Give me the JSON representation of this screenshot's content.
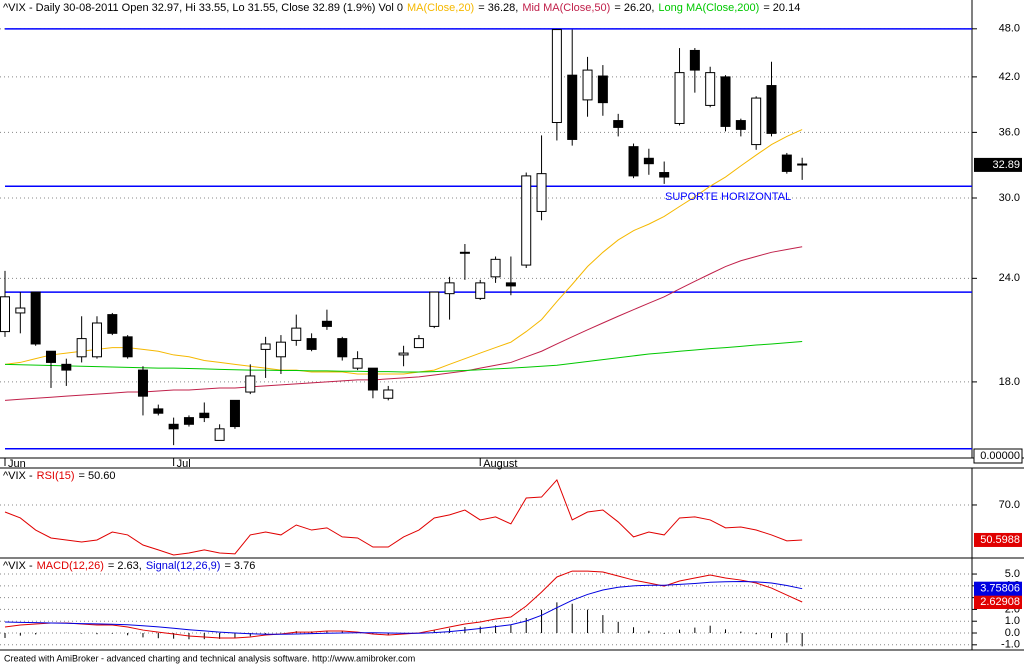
{
  "chart_data": [
    {
      "type": "candlestick",
      "title": "^VIX - Daily 30-08-2011 Open 32.97, Hi 33.55, Lo 31.55, Close 32.89 (1.9%) Vol 0",
      "log_scale": true,
      "ylim": [
        14.57,
        52.0
      ],
      "yticks": [
        {
          "value": 48,
          "label": "48.0"
        },
        {
          "value": 42,
          "label": "42.0"
        },
        {
          "value": 36,
          "label": "36.0"
        },
        {
          "value": 30,
          "label": "30.0"
        },
        {
          "value": 24,
          "label": "24.0"
        },
        {
          "value": 18,
          "label": "18.0"
        }
      ],
      "grid": true,
      "bottom_label": "0.00000",
      "categories": [
        "Jun",
        null,
        null,
        null,
        null,
        null,
        null,
        null,
        null,
        null,
        null,
        "Jul",
        null,
        null,
        null,
        null,
        null,
        null,
        null,
        null,
        null,
        null,
        null,
        null,
        null,
        null,
        null,
        null,
        null,
        null,
        null,
        "August",
        null,
        null,
        null,
        null,
        null,
        null,
        null,
        null,
        null,
        null,
        null,
        null,
        null,
        null,
        null,
        null,
        null,
        null,
        null,
        null,
        null
      ],
      "open": [
        20.7,
        21.8,
        23.1,
        19.6,
        18.9,
        19.3,
        19.3,
        21.7,
        20.4,
        18.6,
        16.7,
        16.0,
        16.3,
        16.5,
        15.3,
        17.1,
        17.5,
        19.7,
        19.3,
        20.2,
        20.3,
        21.3,
        20.3,
        18.7,
        18.7,
        17.2,
        19.4,
        19.8,
        21.0,
        23.0,
        25.8,
        22.7,
        24.1,
        23.7,
        24.9,
        28.9,
        37.0,
        42.2,
        39.4,
        42.1,
        37.2,
        34.6,
        33.5,
        32.2,
        36.9,
        45.2,
        38.8,
        42.0,
        37.2,
        34.8,
        41.0,
        33.8,
        32.97
      ],
      "high": [
        24.5,
        23.1,
        23.1,
        19.6,
        19.2,
        21.6,
        21.6,
        21.8,
        20.5,
        18.8,
        16.9,
        16.3,
        16.4,
        17.0,
        16.0,
        17.1,
        18.9,
        20.4,
        20.5,
        21.7,
        20.6,
        22.0,
        20.4,
        19.6,
        18.7,
        17.8,
        19.9,
        20.5,
        23.1,
        24.1,
        26.4,
        23.9,
        25.5,
        25.5,
        32.2,
        35.7,
        47.9,
        47.9,
        44.4,
        43.4,
        37.9,
        34.9,
        34.4,
        33.2,
        45.5,
        45.5,
        43.2,
        42.2,
        37.4,
        39.8,
        43.8,
        34.0,
        33.55
      ],
      "low": [
        20.4,
        20.6,
        19.9,
        17.7,
        17.8,
        19.0,
        19.2,
        20.5,
        19.2,
        16.4,
        16.4,
        15.1,
        15.9,
        16.1,
        15.3,
        15.8,
        17.4,
        18.2,
        18.4,
        19.9,
        19.6,
        20.8,
        19.1,
        18.6,
        17.2,
        17.1,
        18.8,
        19.8,
        20.9,
        21.4,
        23.9,
        22.6,
        23.7,
        22.9,
        24.7,
        28.2,
        35.2,
        34.7,
        37.6,
        37.7,
        35.6,
        31.7,
        32.0,
        31.2,
        36.7,
        40.2,
        38.6,
        36.1,
        35.6,
        34.3,
        35.6,
        32.1,
        31.55
      ],
      "close": [
        22.8,
        22.1,
        20.0,
        19.0,
        18.6,
        20.3,
        21.2,
        20.6,
        19.3,
        17.3,
        16.5,
        15.8,
        16.0,
        16.3,
        15.8,
        15.9,
        18.3,
        20.0,
        20.1,
        20.9,
        19.7,
        21.0,
        19.3,
        19.2,
        17.6,
        17.6,
        19.5,
        20.3,
        23.1,
        23.7,
        25.8,
        23.7,
        25.3,
        23.5,
        31.9,
        32.1,
        47.9,
        35.3,
        42.8,
        39.1,
        36.5,
        31.9,
        33.0,
        31.8,
        42.5,
        42.8,
        42.5,
        36.6,
        36.3,
        39.6,
        35.9,
        32.3,
        32.89
      ],
      "up_color": "#ffffff",
      "down_color": "#000000",
      "series": [
        {
          "name": "MA(Close,20)",
          "legend_value": "= 36.28,",
          "color": "#f5b800",
          "values": [
            18.9,
            19.0,
            19.2,
            19.4,
            19.5,
            19.6,
            19.7,
            19.8,
            19.8,
            19.7,
            19.6,
            19.4,
            19.3,
            19.1,
            19.0,
            18.9,
            18.8,
            18.7,
            18.6,
            18.6,
            18.5,
            18.5,
            18.5,
            18.4,
            18.4,
            18.4,
            18.4,
            18.5,
            18.6,
            18.9,
            19.2,
            19.5,
            19.8,
            20.1,
            20.7,
            21.4,
            22.5,
            23.6,
            24.8,
            25.8,
            26.7,
            27.4,
            27.9,
            28.5,
            29.3,
            30.1,
            31.0,
            31.8,
            32.8,
            33.8,
            34.8,
            35.6,
            36.28
          ]
        },
        {
          "name": "Mid MA(Close,50)",
          "legend_value": "= 26.20,",
          "color": "#c0204a",
          "values": [
            17.1,
            17.15,
            17.2,
            17.25,
            17.3,
            17.35,
            17.4,
            17.45,
            17.5,
            17.5,
            17.55,
            17.6,
            17.6,
            17.65,
            17.7,
            17.7,
            17.75,
            17.8,
            17.85,
            17.9,
            17.95,
            18.0,
            18.05,
            18.1,
            18.1,
            18.15,
            18.2,
            18.25,
            18.35,
            18.45,
            18.55,
            18.7,
            18.85,
            19.0,
            19.3,
            19.6,
            20.0,
            20.4,
            20.8,
            21.2,
            21.6,
            22.0,
            22.4,
            22.8,
            23.3,
            23.8,
            24.3,
            24.8,
            25.2,
            25.5,
            25.8,
            26.0,
            26.2
          ]
        },
        {
          "name": "Long MA(Close,200)",
          "legend_value": "= 20.14",
          "color": "#00c800",
          "values": [
            18.9,
            18.88,
            18.86,
            18.84,
            18.82,
            18.8,
            18.78,
            18.76,
            18.74,
            18.72,
            18.7,
            18.7,
            18.68,
            18.66,
            18.64,
            18.62,
            18.6,
            18.6,
            18.58,
            18.58,
            18.56,
            18.56,
            18.54,
            18.54,
            18.52,
            18.52,
            18.5,
            18.5,
            18.52,
            18.55,
            18.58,
            18.62,
            18.66,
            18.7,
            18.75,
            18.8,
            18.85,
            18.95,
            19.05,
            19.15,
            19.25,
            19.35,
            19.45,
            19.52,
            19.6,
            19.67,
            19.74,
            19.8,
            19.87,
            19.94,
            20.0,
            20.07,
            20.14
          ]
        }
      ],
      "hlines": {
        "color": "#0000ff",
        "values": [
          48,
          31,
          23.1,
          14.95
        ]
      },
      "annotation": {
        "text": "SUPORTE HORIZONTAL",
        "color": "#0000ff"
      }
    },
    {
      "type": "line",
      "title": "^VIX -",
      "ylim": [
        40.6,
        90.5
      ],
      "yticks": [
        {
          "value": 70,
          "label": "70.0"
        }
      ],
      "grid": true,
      "series": [
        {
          "name": "RSI(15)",
          "legend_value": "= 50.60",
          "color": "#e00000",
          "values": [
            66.1,
            62.8,
            56.1,
            51.7,
            50.6,
            49.5,
            50.6,
            55.0,
            53.4,
            47.8,
            45.1,
            42.3,
            43.4,
            45.1,
            43.4,
            42.9,
            53.4,
            55.0,
            53.4,
            58.9,
            56.1,
            57.3,
            52.3,
            51.7,
            46.7,
            46.7,
            52.3,
            56.1,
            62.8,
            64.5,
            67.2,
            61.7,
            63.4,
            59.5,
            73.9,
            74.4,
            83.9,
            61.7,
            66.1,
            67.2,
            60.6,
            52.3,
            55.0,
            53.4,
            62.8,
            63.4,
            61.7,
            57.3,
            57.8,
            56.1,
            53.4,
            50.1,
            50.5988
          ]
        }
      ]
    },
    {
      "type": "line",
      "title": "^VIX -",
      "ylim": [
        -1.44,
        6.36
      ],
      "yticks": [
        {
          "value": 5,
          "label": "5.0"
        },
        {
          "value": 4,
          "label": "4.0"
        },
        {
          "value": 3,
          "label": "3.0"
        },
        {
          "value": 2,
          "label": "2.0"
        },
        {
          "value": 1,
          "label": "1.0"
        },
        {
          "value": 0,
          "label": "0.0"
        },
        {
          "value": -1,
          "label": "-1.0"
        }
      ],
      "grid": true,
      "series": [
        {
          "name": "MACD(12,26)",
          "legend_value": "= 2.63,",
          "color": "#e00000",
          "values": [
            0.51,
            0.68,
            0.76,
            0.85,
            0.85,
            0.76,
            0.68,
            0.68,
            0.51,
            0.25,
            0.08,
            -0.08,
            -0.25,
            -0.34,
            -0.42,
            -0.42,
            -0.34,
            -0.17,
            -0.08,
            0.08,
            0.08,
            0.17,
            0.17,
            0.08,
            -0.08,
            -0.17,
            -0.08,
            0,
            0.25,
            0.51,
            0.76,
            0.93,
            1.19,
            1.36,
            2.29,
            3.47,
            4.75,
            5.25,
            5.25,
            5.17,
            4.83,
            4.49,
            4.24,
            3.98,
            4.41,
            4.66,
            4.92,
            4.66,
            4.49,
            4.24,
            3.81,
            3.22,
            2.62908
          ]
        },
        {
          "name": "Signal(12,26,9)",
          "legend_value": "= 3.76",
          "color": "#0000e0",
          "values": [
            0.93,
            0.9,
            0.88,
            0.85,
            0.83,
            0.8,
            0.78,
            0.74,
            0.7,
            0.62,
            0.52,
            0.4,
            0.28,
            0.18,
            0.08,
            0.0,
            -0.06,
            -0.1,
            -0.1,
            -0.08,
            -0.05,
            -0.02,
            0.0,
            0.02,
            0.02,
            0.0,
            -0.02,
            -0.02,
            0.03,
            0.12,
            0.25,
            0.38,
            0.54,
            0.7,
            1.02,
            1.5,
            2.15,
            2.77,
            3.27,
            3.65,
            3.88,
            4.0,
            4.05,
            4.05,
            4.12,
            4.2,
            4.3,
            4.35,
            4.37,
            4.34,
            4.24,
            4.03,
            3.75806
          ]
        }
      ],
      "histogram": {
        "color": "#000000",
        "values": [
          -0.42,
          -0.22,
          -0.12,
          0,
          0.02,
          -0.04,
          -0.1,
          -0.06,
          -0.19,
          -0.37,
          -0.44,
          -0.48,
          -0.53,
          -0.52,
          -0.5,
          -0.42,
          -0.28,
          -0.07,
          0.02,
          0.16,
          0.13,
          0.19,
          0.17,
          0.06,
          -0.1,
          -0.17,
          -0.06,
          0.02,
          0.22,
          0.39,
          0.51,
          0.55,
          0.65,
          0.66,
          1.27,
          1.97,
          2.6,
          2.48,
          1.98,
          1.52,
          0.95,
          0.49,
          0.19,
          -0.07,
          0.29,
          0.46,
          0.62,
          0.31,
          0.12,
          -0.1,
          -0.43,
          -0.81,
          -1.13
        ]
      }
    }
  ],
  "footer": "Created with AmiBroker - advanced charting and technical analysis software. http://www.amibroker.com"
}
